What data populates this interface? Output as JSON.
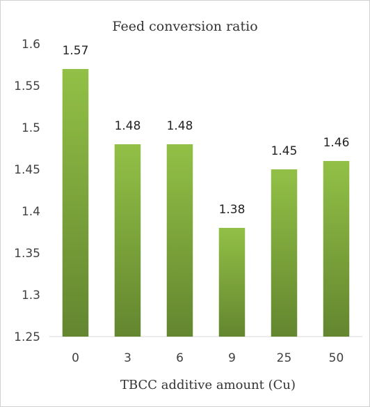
{
  "chart_data": {
    "type": "bar",
    "title": "Feed conversion ratio",
    "xlabel": "TBCC additive amount (Cu)",
    "ylabel": "",
    "categories": [
      "0",
      "3",
      "6",
      "9",
      "25",
      "50"
    ],
    "values": [
      1.57,
      1.48,
      1.48,
      1.38,
      1.45,
      1.46
    ],
    "data_labels": [
      "1.57",
      "1.48",
      "1.48",
      "1.38",
      "1.45",
      "1.46"
    ],
    "ylim": [
      1.25,
      1.6
    ],
    "yticks": [
      "1.25",
      "1.3",
      "1.35",
      "1.4",
      "1.45",
      "1.5",
      "1.55",
      "1.6"
    ],
    "grid": false,
    "legend": "none",
    "colors": {
      "bar_top": "#92c046",
      "bar_bottom": "#63862f",
      "axis": "#d9d9d9",
      "text": "#404040"
    }
  }
}
